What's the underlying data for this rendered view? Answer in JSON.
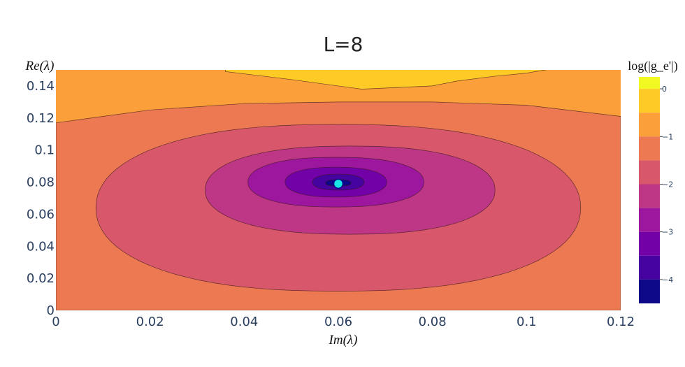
{
  "chart_data": {
    "type": "contour",
    "title": "L=8",
    "xlabel": "Im(λ)",
    "ylabel": "Re(λ)",
    "xlim": [
      0,
      0.12
    ],
    "ylim": [
      0,
      0.15
    ],
    "x_ticks": [
      "0",
      "0.02",
      "0.04",
      "0.06",
      "0.08",
      "0.1",
      "0.12"
    ],
    "x_tick_values": [
      0,
      0.02,
      0.04,
      0.06,
      0.08,
      0.1,
      0.12
    ],
    "y_ticks": [
      "0",
      "0.02",
      "0.04",
      "0.06",
      "0.08",
      "0.1",
      "0.12",
      "0.14"
    ],
    "y_tick_values": [
      0,
      0.02,
      0.04,
      0.06,
      0.08,
      0.1,
      0.12,
      0.14
    ],
    "colorbar": {
      "title": "log(|g_e'|)",
      "ticks": [
        "0",
        "−1",
        "−2",
        "−3",
        "−4"
      ],
      "tick_values": [
        0,
        -1,
        -2,
        -3,
        -4
      ],
      "range": [
        -4.5,
        0.25
      ],
      "levels": [
        {
          "from": 0,
          "to": 0.25,
          "color": "#f0f921"
        },
        {
          "from": -0.5,
          "to": 0,
          "color": "#fdca26"
        },
        {
          "from": -1,
          "to": -0.5,
          "color": "#fb9f3a"
        },
        {
          "from": -1.5,
          "to": -1,
          "color": "#ed7953"
        },
        {
          "from": -2,
          "to": -1.5,
          "color": "#d8576b"
        },
        {
          "from": -2.5,
          "to": -2,
          "color": "#bd3786"
        },
        {
          "from": -3,
          "to": -2.5,
          "color": "#9c179e"
        },
        {
          "from": -3.5,
          "to": -3,
          "color": "#7201a8"
        },
        {
          "from": -4,
          "to": -3.5,
          "color": "#46039f"
        },
        {
          "from": -4.5,
          "to": -4,
          "color": "#0d0887"
        }
      ]
    },
    "background_level_color": "#fb9f3a",
    "contour_regions": [
      {
        "level": -1,
        "color": "#ed7953",
        "outline": [
          [
            0,
            0
          ],
          [
            0,
            0.117
          ],
          [
            0.01,
            0.121
          ],
          [
            0.02,
            0.125
          ],
          [
            0.04,
            0.129
          ],
          [
            0.06,
            0.13
          ],
          [
            0.08,
            0.13
          ],
          [
            0.1,
            0.128
          ],
          [
            0.12,
            0.121
          ],
          [
            0.12,
            0
          ]
        ]
      },
      {
        "level": -0.5,
        "color": "#fdca26",
        "outline": [
          [
            0.036,
            0.155
          ],
          [
            0.036,
            0.149
          ],
          [
            0.05,
            0.144
          ],
          [
            0.065,
            0.138
          ],
          [
            0.08,
            0.14
          ],
          [
            0.085,
            0.143
          ],
          [
            0.093,
            0.146
          ],
          [
            0.1,
            0.148
          ],
          [
            0.106,
            0.151
          ],
          [
            0.107,
            0.155
          ]
        ]
      },
      {
        "level": -1.5,
        "color": "#d8576b",
        "ellipse": {
          "cx": 0.06,
          "cy": 0.064,
          "rx": 0.0515,
          "ry": 0.052
        }
      },
      {
        "level": -2,
        "color": "#bd3786",
        "ellipse": {
          "cx": 0.0625,
          "cy": 0.075,
          "rx": 0.0308,
          "ry": 0.0275
        }
      },
      {
        "level": -2.5,
        "color": "#9c179e",
        "ellipse": {
          "cx": 0.0595,
          "cy": 0.08,
          "rx": 0.0187,
          "ry": 0.0155
        }
      },
      {
        "level": -3,
        "color": "#7201a8",
        "ellipse": {
          "cx": 0.0595,
          "cy": 0.08,
          "rx": 0.0108,
          "ry": 0.0093
        }
      },
      {
        "level": -3.5,
        "color": "#46039f",
        "ellipse": {
          "cx": 0.06,
          "cy": 0.08,
          "rx": 0.0055,
          "ry": 0.005
        }
      },
      {
        "level": -4,
        "color": "#0d0887",
        "ellipse": {
          "cx": 0.06,
          "cy": 0.0795,
          "rx": 0.0027,
          "ry": 0.0021
        }
      }
    ],
    "marker": {
      "x": 0.06,
      "y": 0.079,
      "color": "#17e8e6",
      "edge": "#0d0887"
    }
  }
}
